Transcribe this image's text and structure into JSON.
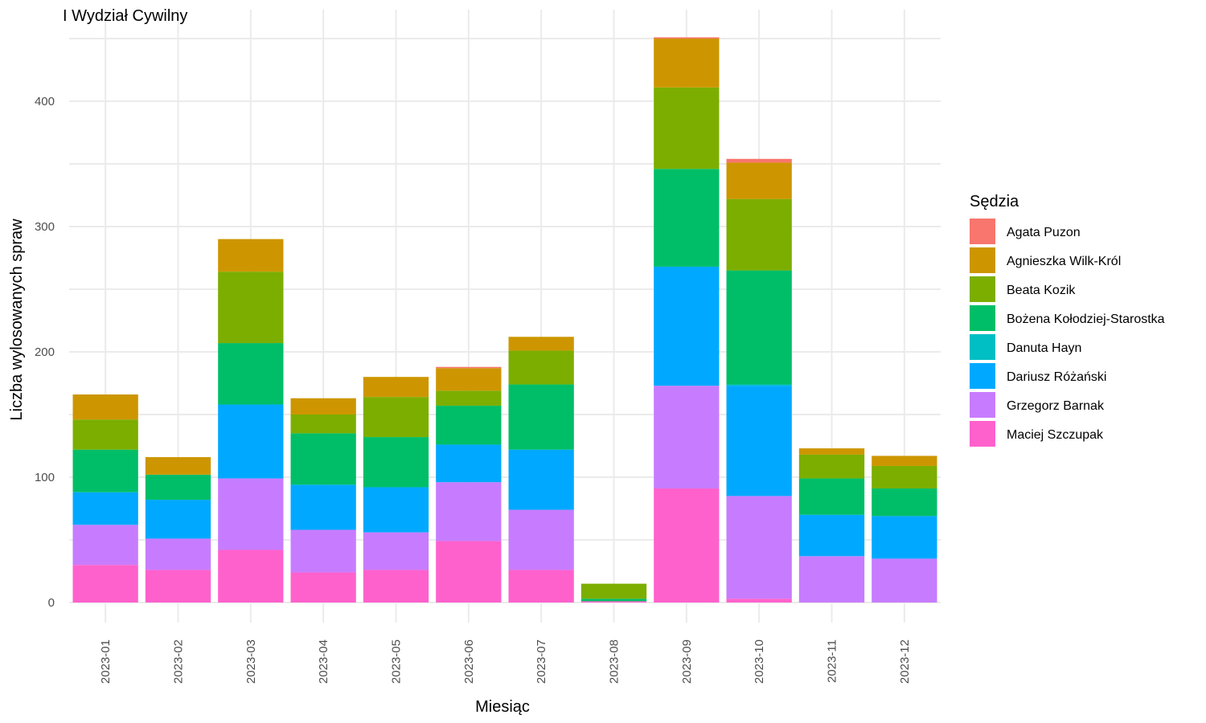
{
  "chart_data": {
    "type": "bar",
    "stacked": true,
    "title": "I Wydział Cywilny",
    "xlabel": "Miesiąc",
    "ylabel": "Liczba wylosowanych spraw",
    "ylim": [
      0,
      452
    ],
    "yticks": [
      0,
      100,
      200,
      300,
      400
    ],
    "grid": true,
    "legend_title": "Sędzia",
    "legend_position": "right",
    "categories": [
      "2023-01",
      "2023-02",
      "2023-03",
      "2023-04",
      "2023-05",
      "2023-06",
      "2023-07",
      "2023-08",
      "2023-09",
      "2023-10",
      "2023-11",
      "2023-12"
    ],
    "series": [
      {
        "name": "Agata Puzon",
        "color": "#F8766D",
        "values": [
          0,
          0,
          0,
          0,
          0,
          1,
          0,
          0,
          1,
          3,
          0,
          0
        ]
      },
      {
        "name": "Agnieszka Wilk-Król",
        "color": "#CD9600",
        "values": [
          20,
          14,
          26,
          13,
          16,
          18,
          11,
          0,
          39,
          29,
          5,
          8
        ]
      },
      {
        "name": "Beata Kozik",
        "color": "#7CAE00",
        "values": [
          24,
          0,
          57,
          15,
          32,
          12,
          27,
          12,
          65,
          57,
          19,
          18
        ]
      },
      {
        "name": "Bożena Kołodziej-Starostka",
        "color": "#00BE67",
        "values": [
          34,
          20,
          49,
          41,
          40,
          31,
          52,
          2,
          78,
          91,
          29,
          22
        ]
      },
      {
        "name": "Danuta Hayn",
        "color": "#00BFC4",
        "values": [
          0,
          0,
          0,
          0,
          0,
          0,
          0,
          0,
          0,
          1,
          0,
          0
        ]
      },
      {
        "name": "Dariusz Różański",
        "color": "#00A9FF",
        "values": [
          26,
          31,
          59,
          36,
          36,
          30,
          48,
          0,
          95,
          88,
          33,
          34
        ]
      },
      {
        "name": "Grzegorz Barnak",
        "color": "#C77CFF",
        "values": [
          32,
          25,
          57,
          34,
          30,
          47,
          48,
          0,
          82,
          82,
          37,
          35
        ]
      },
      {
        "name": "Maciej Szczupak",
        "color": "#FF61CC",
        "values": [
          30,
          26,
          42,
          24,
          26,
          49,
          26,
          1,
          91,
          3,
          0,
          0
        ]
      }
    ]
  }
}
